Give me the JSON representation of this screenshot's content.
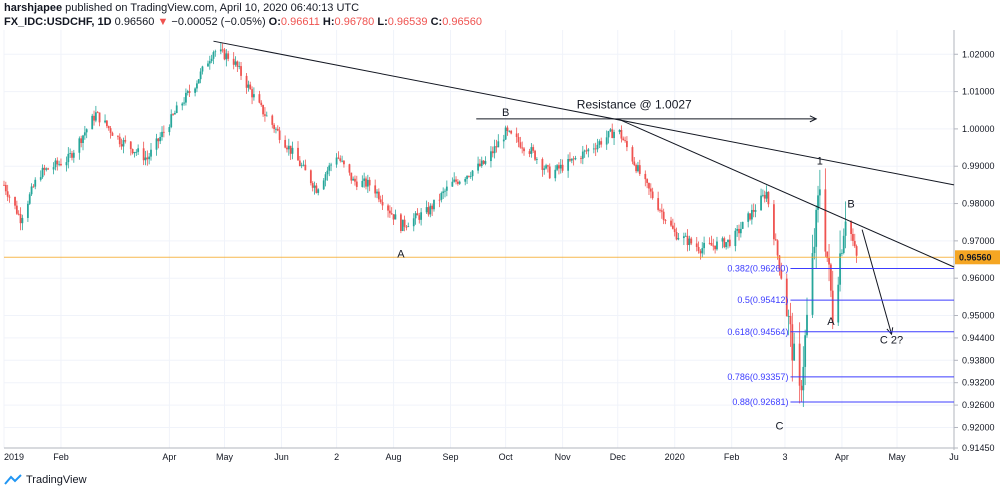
{
  "header": {
    "publisher": "harshjapee",
    "published_text": "published on TradingView.com, April 10, 2020 06:40:13 UTC",
    "symbol": "FX_IDC:USDCHF, 1D",
    "last_price": "0.96560",
    "arrow": "▼",
    "change": "−0.00052 (−0.05%)",
    "ohlc": [
      {
        "key": "O:",
        "value": "0.96611"
      },
      {
        "key": "H:",
        "value": "0.96780"
      },
      {
        "key": "L:",
        "value": "0.96539"
      },
      {
        "key": "C:",
        "value": "0.96560"
      }
    ]
  },
  "footer": {
    "brand": "TradingView"
  },
  "colors": {
    "up": "#26a69a",
    "down": "#ef5350",
    "fib": "#3c3cff",
    "last_line": "#f5a623",
    "trend": "#131722",
    "grid": "#f0f3fa"
  },
  "chart_data": {
    "type": "candlestick",
    "symbol": "FX_IDC:USDCHF",
    "interval": "1D",
    "ylim": [
      0.9145,
      1.0265
    ],
    "y_ticks": [
      "1.02000",
      "1.01000",
      "1.00000",
      "0.99000",
      "0.98000",
      "0.97000",
      "0.96000",
      "0.95000",
      "0.94400",
      "0.93800",
      "0.93200",
      "0.92600",
      "0.92000",
      "0.91450"
    ],
    "y_tick_values": [
      1.02,
      1.01,
      1.0,
      0.99,
      0.98,
      0.97,
      0.96,
      0.95,
      0.944,
      0.938,
      0.932,
      0.926,
      0.92,
      0.9145
    ],
    "x_ticks": [
      "2019",
      "Feb",
      "Apr",
      "May",
      "Jun",
      "2",
      "Aug",
      "Sep",
      "Oct",
      "Nov",
      "Dec",
      "2020",
      "Feb",
      "3",
      "Apr",
      "May",
      "Ju"
    ],
    "x_tick_dates": [
      "2019-01-01",
      "2019-02-01",
      "2019-04-01",
      "2019-05-01",
      "2019-06-01",
      "2019-07-01",
      "2019-08-01",
      "2019-09-01",
      "2019-10-01",
      "2019-11-01",
      "2019-12-01",
      "2020-01-01",
      "2020-02-01",
      "2020-03-01",
      "2020-04-01",
      "2020-05-01",
      "2020-06-01"
    ],
    "x_range": [
      "2019-01-01",
      "2020-06-01"
    ],
    "current_price": {
      "label": "0.96560",
      "value": 0.9656
    },
    "price_path": [
      {
        "date": "2019-01-01",
        "price": 0.985
      },
      {
        "date": "2019-01-10",
        "price": 0.976
      },
      {
        "date": "2019-01-20",
        "price": 0.988
      },
      {
        "date": "2019-02-05",
        "price": 0.992
      },
      {
        "date": "2019-02-20",
        "price": 1.004
      },
      {
        "date": "2019-03-05",
        "price": 0.997
      },
      {
        "date": "2019-03-20",
        "price": 0.992
      },
      {
        "date": "2019-04-05",
        "price": 1.005
      },
      {
        "date": "2019-04-15",
        "price": 1.012
      },
      {
        "date": "2019-04-25",
        "price": 1.021
      },
      {
        "date": "2019-05-05",
        "price": 1.019
      },
      {
        "date": "2019-05-20",
        "price": 1.006
      },
      {
        "date": "2019-06-05",
        "price": 0.995
      },
      {
        "date": "2019-06-20",
        "price": 0.984
      },
      {
        "date": "2019-07-01",
        "price": 0.993
      },
      {
        "date": "2019-07-10",
        "price": 0.986
      },
      {
        "date": "2019-07-20",
        "price": 0.985
      },
      {
        "date": "2019-08-05",
        "price": 0.974
      },
      {
        "date": "2019-08-20",
        "price": 0.978
      },
      {
        "date": "2019-09-01",
        "price": 0.985
      },
      {
        "date": "2019-09-20",
        "price": 0.991
      },
      {
        "date": "2019-10-01",
        "price": 0.999
      },
      {
        "date": "2019-10-15",
        "price": 0.994
      },
      {
        "date": "2019-10-25",
        "price": 0.988
      },
      {
        "date": "2019-11-05",
        "price": 0.991
      },
      {
        "date": "2019-11-20",
        "price": 0.996
      },
      {
        "date": "2019-12-01",
        "price": 1.0
      },
      {
        "date": "2019-12-15",
        "price": 0.986
      },
      {
        "date": "2020-01-01",
        "price": 0.972
      },
      {
        "date": "2020-01-15",
        "price": 0.968
      },
      {
        "date": "2020-02-01",
        "price": 0.97
      },
      {
        "date": "2020-02-20",
        "price": 0.983
      },
      {
        "date": "2020-03-01",
        "price": 0.955
      },
      {
        "date": "2020-03-09",
        "price": 0.928
      },
      {
        "date": "2020-03-20",
        "price": 0.985
      },
      {
        "date": "2020-03-27",
        "price": 0.951
      },
      {
        "date": "2020-04-03",
        "price": 0.978
      },
      {
        "date": "2020-04-09",
        "price": 0.9656
      }
    ],
    "trendlines": [
      {
        "from": {
          "date": "2019-04-25",
          "price": 1.0235
        },
        "to": {
          "date": "2020-06-01",
          "price": 0.985
        }
      },
      {
        "from": {
          "date": "2019-12-01",
          "price": 1.0027
        },
        "to": {
          "date": "2020-06-01",
          "price": 0.963
        }
      }
    ],
    "resistance_arrow": {
      "from": {
        "date": "2019-09-15",
        "price": 1.0027
      },
      "to": {
        "date": "2020-03-18",
        "price": 1.0027
      }
    },
    "projection_arrow": {
      "from": {
        "date": "2020-04-12",
        "price": 0.973
      },
      "to": {
        "date": "2020-04-28",
        "price": 0.945
      }
    },
    "fib_levels": [
      {
        "label": "0.382(0.96260)",
        "price": 0.9626
      },
      {
        "label": "0.5(0.95412)",
        "price": 0.95412
      },
      {
        "label": "0.618(0.94564)",
        "price": 0.94564
      },
      {
        "label": "0.786(0.93357)",
        "price": 0.93357
      },
      {
        "label": "0.88(0.92681)",
        "price": 0.92681
      }
    ],
    "fib_start_date": "2020-03-04",
    "annotations": [
      {
        "text": "Resistance @ 1.0027",
        "date": "2019-12-10",
        "price": 1.0055
      },
      {
        "text": "B",
        "date": "2019-10-01",
        "price": 1.0035
      },
      {
        "text": "A",
        "date": "2019-08-05",
        "price": 0.9655
      },
      {
        "text": "1",
        "date": "2020-03-20",
        "price": 0.9905
      },
      {
        "text": "B",
        "date": "2020-04-06",
        "price": 0.979
      },
      {
        "text": "A",
        "date": "2020-03-26",
        "price": 0.9475
      },
      {
        "text": "C 2?",
        "date": "2020-04-28",
        "price": 0.9425
      },
      {
        "text": "C",
        "date": "2020-02-27",
        "price": 0.9195
      }
    ]
  }
}
